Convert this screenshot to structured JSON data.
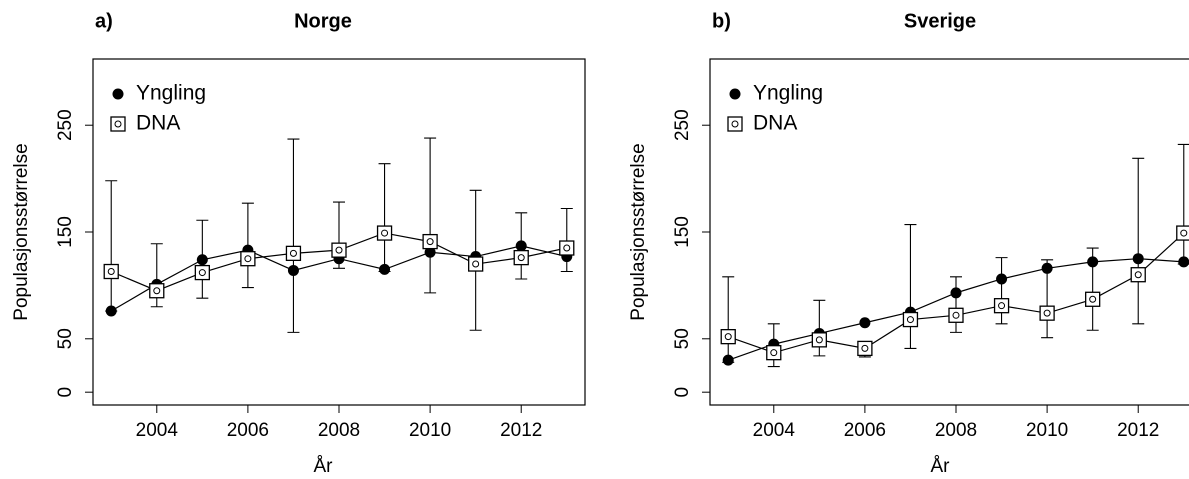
{
  "chart_data": [
    {
      "type": "line",
      "label": "a)",
      "title": "Norge",
      "xlabel": "År",
      "ylabel": "Populasjonsstørrelse",
      "x": [
        2003,
        2004,
        2005,
        2006,
        2007,
        2008,
        2009,
        2010,
        2011,
        2012,
        2013
      ],
      "xlim": [
        2002.6,
        2013.4
      ],
      "xticks": [
        2004,
        2006,
        2008,
        2010,
        2012
      ],
      "ylim": [
        -12,
        312
      ],
      "yticks": [
        0,
        50,
        150,
        250
      ],
      "legend": "top-left",
      "series": [
        {
          "name": "Yngling",
          "color": "#000000",
          "marker": "filled-circle",
          "values": [
            76,
            101,
            124,
            133,
            114,
            125,
            115,
            131,
            127,
            137,
            127
          ]
        },
        {
          "name": "DNA",
          "color": "#000000",
          "marker": "open-square",
          "values": [
            113,
            95,
            112,
            125,
            130,
            133,
            149,
            141,
            120,
            126,
            135
          ],
          "upper": [
            198,
            139,
            161,
            177,
            237,
            178,
            214,
            238,
            189,
            168,
            172
          ],
          "lower": [
            76,
            80,
            88,
            98,
            56,
            116,
            113,
            93,
            58,
            106,
            113
          ]
        }
      ]
    },
    {
      "type": "line",
      "label": "b)",
      "title": "Sverige",
      "xlabel": "År",
      "ylabel": "Populasjonsstørrelse",
      "x": [
        2003,
        2004,
        2005,
        2006,
        2007,
        2008,
        2009,
        2010,
        2011,
        2012,
        2013
      ],
      "xlim": [
        2002.6,
        2013.4
      ],
      "xticks": [
        2004,
        2006,
        2008,
        2010,
        2012
      ],
      "ylim": [
        -12,
        312
      ],
      "yticks": [
        0,
        50,
        150,
        250
      ],
      "legend": "top-left",
      "series": [
        {
          "name": "Yngling",
          "color": "#000000",
          "marker": "filled-circle",
          "values": [
            30,
            45,
            55,
            65,
            75,
            93,
            106,
            116,
            122,
            125,
            122
          ]
        },
        {
          "name": "DNA",
          "color": "#000000",
          "marker": "open-square",
          "values": [
            52,
            37,
            49,
            41,
            68,
            72,
            81,
            74,
            87,
            110,
            149
          ],
          "upper": [
            108,
            64,
            86,
            41,
            157,
            108,
            126,
            124,
            135,
            219,
            232
          ],
          "lower": [
            28,
            24,
            34,
            33,
            41,
            56,
            64,
            51,
            58,
            64,
            120
          ]
        }
      ]
    }
  ]
}
